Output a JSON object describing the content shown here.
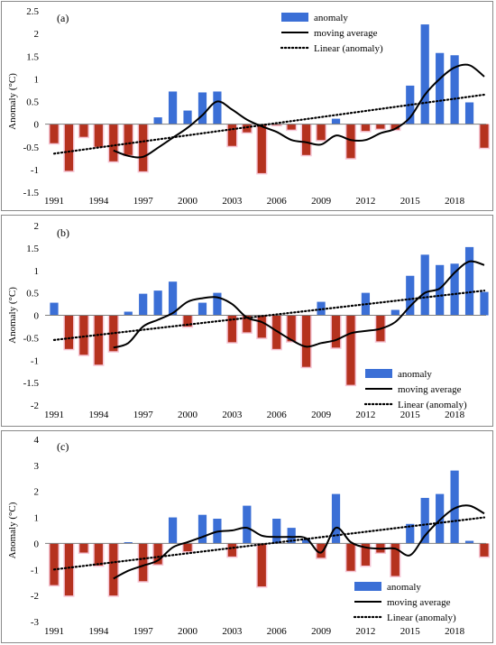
{
  "colors": {
    "positive": "#3b6fd6",
    "negative": "#b5321f",
    "line": "#000000",
    "axis": "#7f7f7f"
  },
  "chart_data": [
    {
      "type": "bar",
      "panel_label": "(a)",
      "ylabel": "Anomaly (°C)",
      "ylim": [
        -1.5,
        2.5
      ],
      "yticks": [
        -1.5,
        -1,
        -0.5,
        0,
        0.5,
        1,
        1.5,
        2,
        2.5
      ],
      "ytick_labels": [
        "-1.5",
        "-1",
        "-0.5",
        "0",
        "0.5",
        "1",
        "1.5",
        "2",
        "2.5"
      ],
      "xtick_labels": [
        "1991",
        "1994",
        "1997",
        "2000",
        "2003",
        "2006",
        "2009",
        "2012",
        "2015",
        "2018"
      ],
      "legend_position": "top-right",
      "years": [
        1991,
        1992,
        1993,
        1994,
        1995,
        1996,
        1997,
        1998,
        1999,
        2000,
        2001,
        2002,
        2003,
        2004,
        2005,
        2006,
        2007,
        2008,
        2009,
        2010,
        2011,
        2012,
        2013,
        2014,
        2015,
        2016,
        2017,
        2018,
        2019,
        2020
      ],
      "series": [
        {
          "name": "anomaly",
          "type": "bar",
          "values": [
            -0.42,
            -1.03,
            -0.28,
            -0.5,
            -0.82,
            -0.68,
            -1.04,
            0.15,
            0.72,
            0.3,
            0.7,
            0.72,
            -0.48,
            -0.18,
            -1.08,
            -0.02,
            -0.12,
            -0.68,
            -0.35,
            0.12,
            -0.75,
            -0.15,
            -0.1,
            -0.12,
            0.85,
            2.2,
            1.57,
            1.52,
            0.48,
            -0.52
          ]
        },
        {
          "name": "moving average",
          "type": "line",
          "values": [
            null,
            null,
            null,
            null,
            -0.58,
            -0.7,
            -0.72,
            -0.52,
            -0.3,
            -0.08,
            0.2,
            0.5,
            0.32,
            0.1,
            -0.05,
            -0.17,
            -0.35,
            -0.4,
            -0.45,
            -0.25,
            -0.35,
            -0.35,
            -0.2,
            -0.1,
            0.15,
            0.65,
            1.0,
            1.25,
            1.3,
            1.05
          ]
        },
        {
          "name": "Linear (anomaly)",
          "type": "trend",
          "values": [
            -0.65,
            0.65
          ]
        }
      ]
    },
    {
      "type": "bar",
      "panel_label": "(b)",
      "ylabel": "Anomaly (°C)",
      "ylim": [
        -2,
        2
      ],
      "yticks": [
        -2,
        -1.5,
        -1,
        -0.5,
        0,
        0.5,
        1,
        1.5,
        2
      ],
      "ytick_labels": [
        "-2",
        "-1.5",
        "-1",
        "-0.5",
        "0",
        "0.5",
        "1",
        "1.5",
        "2"
      ],
      "xtick_labels": [
        "1991",
        "1994",
        "1997",
        "2000",
        "2003",
        "2006",
        "2009",
        "2012",
        "2015",
        "2018"
      ],
      "legend_position": "bottom-right",
      "years": [
        1991,
        1992,
        1993,
        1994,
        1995,
        1996,
        1997,
        1998,
        1999,
        2000,
        2001,
        2002,
        2003,
        2004,
        2005,
        2006,
        2007,
        2008,
        2009,
        2010,
        2011,
        2012,
        2013,
        2014,
        2015,
        2016,
        2017,
        2018,
        2019,
        2020
      ],
      "series": [
        {
          "name": "anomaly",
          "type": "bar",
          "values": [
            0.28,
            -0.75,
            -0.88,
            -1.1,
            -0.8,
            0.08,
            0.48,
            0.55,
            0.75,
            -0.25,
            0.28,
            0.5,
            -0.6,
            -0.38,
            -0.5,
            -0.75,
            -0.58,
            -1.15,
            0.3,
            -0.72,
            -1.55,
            0.5,
            -0.58,
            0.12,
            0.88,
            1.35,
            1.12,
            1.15,
            1.52,
            0.52
          ]
        },
        {
          "name": "moving average",
          "type": "line",
          "values": [
            null,
            null,
            null,
            null,
            -0.72,
            -0.62,
            -0.25,
            -0.1,
            0.05,
            0.3,
            0.38,
            0.4,
            0.25,
            -0.05,
            -0.15,
            -0.35,
            -0.55,
            -0.7,
            -0.62,
            -0.55,
            -0.4,
            -0.35,
            -0.3,
            -0.15,
            0.2,
            0.5,
            0.6,
            0.95,
            1.2,
            1.12
          ]
        },
        {
          "name": "Linear (anomaly)",
          "type": "trend",
          "values": [
            -0.55,
            0.55
          ]
        }
      ]
    },
    {
      "type": "bar",
      "panel_label": "(c)",
      "ylabel": "Anomaly (°C)",
      "ylim": [
        -3,
        4
      ],
      "yticks": [
        -3,
        -2,
        -1,
        0,
        1,
        2,
        3,
        4
      ],
      "ytick_labels": [
        "-3",
        "-2",
        "-1",
        "0",
        "1",
        "2",
        "3",
        "4"
      ],
      "xtick_labels": [
        "1991",
        "1994",
        "1997",
        "2000",
        "2003",
        "2006",
        "2009",
        "2012",
        "2015",
        "2018"
      ],
      "legend_position": "bottom-right",
      "years": [
        1991,
        1992,
        1993,
        1994,
        1995,
        1996,
        1997,
        1998,
        1999,
        2000,
        2001,
        2002,
        2003,
        2004,
        2005,
        2006,
        2007,
        2008,
        2009,
        2010,
        2011,
        2012,
        2013,
        2014,
        2015,
        2016,
        2017,
        2018,
        2019,
        2020
      ],
      "series": [
        {
          "name": "anomaly",
          "type": "bar",
          "values": [
            -1.6,
            -2.0,
            -0.35,
            -0.85,
            -2.0,
            0.05,
            -1.45,
            -0.8,
            1.0,
            -0.3,
            1.1,
            0.95,
            -0.5,
            1.45,
            -1.65,
            0.95,
            0.6,
            0.15,
            -0.55,
            1.9,
            -1.05,
            -0.85,
            -0.35,
            -1.25,
            0.75,
            1.75,
            1.9,
            2.8,
            0.1,
            -0.5
          ]
        },
        {
          "name": "moving average",
          "type": "line",
          "values": [
            null,
            null,
            null,
            null,
            -1.35,
            -1.05,
            -0.85,
            -0.65,
            -0.15,
            0.05,
            0.25,
            0.45,
            0.5,
            0.6,
            0.3,
            0.25,
            0.25,
            0.2,
            -0.35,
            0.6,
            0.05,
            -0.15,
            -0.2,
            -0.2,
            -0.45,
            0.3,
            0.9,
            1.35,
            1.45,
            1.15
          ]
        },
        {
          "name": "Linear (anomaly)",
          "type": "trend",
          "values": [
            -1.0,
            1.0
          ]
        }
      ]
    }
  ]
}
